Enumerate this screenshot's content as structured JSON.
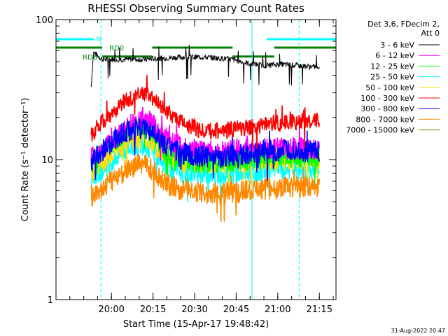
{
  "chart_data": {
    "type": "line",
    "title": "RHESSI Observing Summary Count Rates",
    "xlabel": "Start Time (15-Apr-17 19:48:42)",
    "ylabel": "Count Rate (s⁻¹ detector⁻¹)",
    "ylog": true,
    "ylim": [
      1,
      100
    ],
    "y_ticks": [
      {
        "value": 1,
        "label": "1"
      },
      {
        "value": 10,
        "label": "10"
      },
      {
        "value": 100,
        "label": "100"
      }
    ],
    "xlim_minutes_after_start": [
      -8.7,
      92.3
    ],
    "x_ticks": [
      {
        "value": 11.3,
        "label": "20:00"
      },
      {
        "value": 26.3,
        "label": "20:15"
      },
      {
        "value": 41.3,
        "label": "20:30"
      },
      {
        "value": 56.3,
        "label": "20:45"
      },
      {
        "value": 71.3,
        "label": "21:00"
      },
      {
        "value": 86.3,
        "label": "21:15"
      }
    ],
    "legend_position": "right",
    "legend_header": [
      "Det 3,6, FDecim 2,",
      "Att 0"
    ],
    "series": [
      {
        "name": "3 - 6 keV",
        "color": "#000000",
        "points": [
          [
            4.0,
            60
          ],
          [
            8,
            52
          ],
          [
            15,
            52
          ],
          [
            22,
            52
          ],
          [
            30,
            53
          ],
          [
            37,
            54
          ],
          [
            44,
            54
          ],
          [
            50,
            53
          ],
          [
            55,
            52
          ],
          [
            60,
            49
          ],
          [
            66,
            47
          ],
          [
            72,
            48
          ],
          [
            78,
            47
          ],
          [
            84,
            46
          ],
          [
            86.3,
            46
          ]
        ]
      },
      {
        "name": "6 - 12 keV",
        "color": "#ff00ff",
        "points": [
          [
            4.0,
            10.5
          ],
          [
            8,
            11.5
          ],
          [
            12,
            14
          ],
          [
            16,
            16.5
          ],
          [
            20,
            19
          ],
          [
            23,
            20
          ],
          [
            26,
            18
          ],
          [
            30,
            14.5
          ],
          [
            34,
            13
          ],
          [
            38,
            12
          ],
          [
            44,
            11.5
          ],
          [
            52,
            11.5
          ],
          [
            60,
            12
          ],
          [
            68,
            12
          ],
          [
            76,
            12
          ],
          [
            86.3,
            12
          ]
        ]
      },
      {
        "name": "12 - 25 keV",
        "color": "#00ff00",
        "points": [
          [
            4.0,
            9.5
          ],
          [
            8,
            11
          ],
          [
            12,
            13.5
          ],
          [
            16,
            15.5
          ],
          [
            20,
            17
          ],
          [
            23,
            18
          ],
          [
            26,
            15.5
          ],
          [
            30,
            12
          ],
          [
            34,
            10.5
          ],
          [
            38,
            10
          ],
          [
            44,
            9.5
          ],
          [
            52,
            9.5
          ],
          [
            60,
            10
          ],
          [
            68,
            10.5
          ],
          [
            76,
            10.5
          ],
          [
            86.3,
            10.5
          ]
        ]
      },
      {
        "name": "25 - 50 keV",
        "color": "#00ffff",
        "points": [
          [
            4.0,
            7.5
          ],
          [
            8,
            8.5
          ],
          [
            12,
            10
          ],
          [
            16,
            11.5
          ],
          [
            20,
            12.5
          ],
          [
            23,
            13
          ],
          [
            26,
            11.5
          ],
          [
            30,
            9.5
          ],
          [
            34,
            8.5
          ],
          [
            38,
            8
          ],
          [
            44,
            8
          ],
          [
            52,
            8
          ],
          [
            60,
            8
          ],
          [
            68,
            8.5
          ],
          [
            76,
            8.5
          ],
          [
            86.3,
            8.5
          ]
        ]
      },
      {
        "name": "50 - 100 keV",
        "color": "#ffdd00",
        "points": [
          [
            4.0,
            8
          ],
          [
            8,
            9.5
          ],
          [
            12,
            11.5
          ],
          [
            16,
            13
          ],
          [
            20,
            14
          ],
          [
            23,
            14.5
          ],
          [
            26,
            13
          ],
          [
            30,
            11
          ],
          [
            34,
            10
          ],
          [
            38,
            9.5
          ],
          [
            44,
            9.5
          ],
          [
            52,
            9.5
          ],
          [
            60,
            9.5
          ],
          [
            68,
            10
          ],
          [
            76,
            10
          ],
          [
            86.3,
            10
          ]
        ]
      },
      {
        "name": "100 - 300 keV",
        "color": "#ff0000",
        "points": [
          [
            4.0,
            15
          ],
          [
            8,
            18.5
          ],
          [
            12,
            22
          ],
          [
            16,
            26
          ],
          [
            20,
            28.5
          ],
          [
            23,
            30
          ],
          [
            26,
            27
          ],
          [
            30,
            23
          ],
          [
            34,
            20
          ],
          [
            38,
            18
          ],
          [
            44,
            16
          ],
          [
            52,
            16
          ],
          [
            60,
            17
          ],
          [
            68,
            18
          ],
          [
            76,
            18.5
          ],
          [
            86.3,
            19
          ]
        ]
      },
      {
        "name": "300 - 800 keV",
        "color": "#0000ff",
        "points": [
          [
            4.0,
            10
          ],
          [
            8,
            11.5
          ],
          [
            12,
            13.5
          ],
          [
            16,
            15.5
          ],
          [
            20,
            16.5
          ],
          [
            23,
            17
          ],
          [
            26,
            15.5
          ],
          [
            30,
            13
          ],
          [
            34,
            11.5
          ],
          [
            38,
            11
          ],
          [
            44,
            10.5
          ],
          [
            52,
            10.5
          ],
          [
            60,
            11
          ],
          [
            68,
            11.5
          ],
          [
            76,
            11.5
          ],
          [
            86.3,
            11.5
          ]
        ]
      },
      {
        "name": "800 - 7000 keV",
        "color": "#ff8800",
        "points": [
          [
            4.0,
            5.5
          ],
          [
            8,
            6.2
          ],
          [
            12,
            7.2
          ],
          [
            16,
            8.3
          ],
          [
            20,
            9
          ],
          [
            23,
            9.3
          ],
          [
            26,
            8.5
          ],
          [
            30,
            7
          ],
          [
            34,
            6.3
          ],
          [
            38,
            6
          ],
          [
            44,
            5.8
          ],
          [
            52,
            5.8
          ],
          [
            60,
            6
          ],
          [
            68,
            6.2
          ],
          [
            76,
            6.3
          ],
          [
            86.3,
            6.3
          ]
        ]
      },
      {
        "name": "7000 - 15000 keV",
        "color": "#808000",
        "points": []
      }
    ],
    "annotations": [
      {
        "text": "N",
        "color": "#00ffff"
      },
      {
        "text": "RD0",
        "color": "#008000"
      },
      {
        "text": "RD6",
        "color": "#008000"
      }
    ],
    "bars": [
      {
        "name": "N",
        "color": "#00ffff",
        "y_frac": 0.93,
        "segments": [
          [
            -8.7,
            5.0
          ],
          [
            67.3,
            92.3
          ]
        ]
      },
      {
        "name": "RD0",
        "color": "#008000",
        "y_frac": 0.9,
        "segments": [
          [
            -8.7,
            8.0
          ],
          [
            26.0,
            55.0
          ],
          [
            70.0,
            92.3
          ]
        ]
      },
      {
        "name": "RD6",
        "color": "#008000",
        "y_frac": 0.868,
        "segments": [
          [
            8.0,
            26.0
          ],
          [
            55.0,
            70.0
          ]
        ]
      }
    ],
    "vertical_lines": [
      {
        "x": -8.7,
        "color": "#00ffff",
        "dashed": false
      },
      {
        "x": 62.0,
        "color": "#00ffff",
        "dashed": false
      },
      {
        "x": 7.5,
        "color": "#00ffff",
        "dashed": true
      },
      {
        "x": 79.0,
        "color": "#00ffff",
        "dashed": true
      }
    ],
    "footer_date": "31-Aug-2022 20:47"
  }
}
